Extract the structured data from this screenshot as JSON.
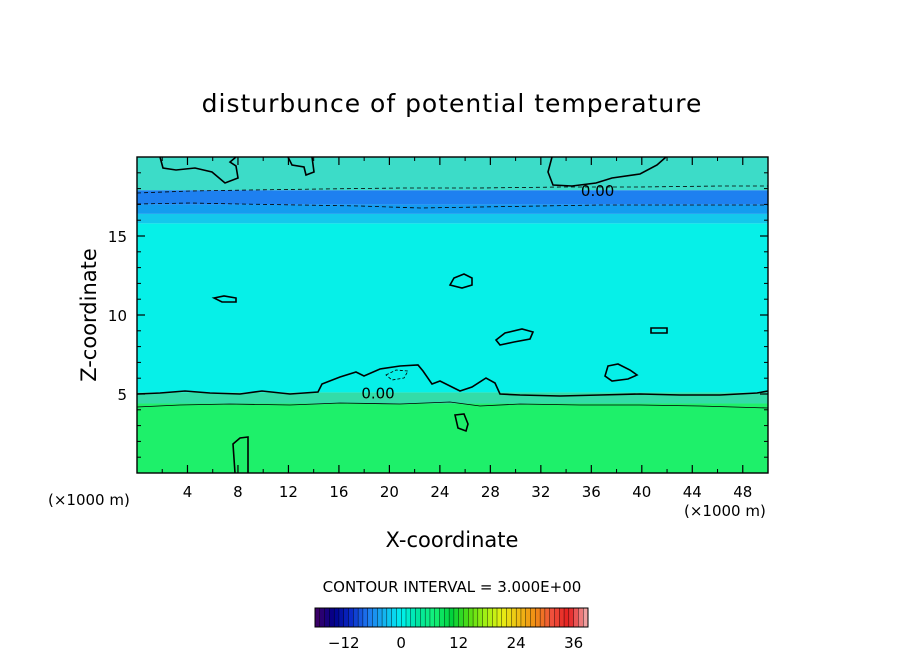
{
  "chart_data": {
    "type": "heatmap",
    "title": "disturbunce of potential temperature",
    "xlabel": "X-coordinate",
    "ylabel": "Z-coordinate",
    "x_unit_label": "(×1000 m)",
    "x_unit_label_right": "(×1000 m)",
    "xlim": [
      0,
      50
    ],
    "ylim": [
      0,
      20
    ],
    "x_ticks": [
      4,
      8,
      12,
      16,
      20,
      24,
      28,
      32,
      36,
      40,
      44,
      48
    ],
    "y_ticks": [
      5,
      10,
      15
    ],
    "contour_interval_text": "CONTOUR INTERVAL = 3.000E+00",
    "contour_labels": [
      {
        "text": "0.00",
        "x": 36.5,
        "z": 17.9
      },
      {
        "text": "0.00",
        "x": 19.1,
        "z": 5.1
      }
    ],
    "colorbar": {
      "range": [
        -18,
        39
      ],
      "ticks": [
        -12,
        0,
        12,
        24,
        36
      ],
      "colors": [
        "#3a0068",
        "#00008c",
        "#0a2cc8",
        "#1e78f0",
        "#14b4f0",
        "#00f0f0",
        "#00e6a0",
        "#14f078",
        "#00d23c",
        "#50dc14",
        "#a0f014",
        "#e6f014",
        "#f0be14",
        "#f08c14",
        "#f0503c",
        "#e61e1e",
        "#f0a0a0"
      ]
    },
    "field_bands": [
      {
        "z": [
          0,
          4.4
        ],
        "value": 6,
        "color": "#1ef06a"
      },
      {
        "z": [
          4.4,
          5.1
        ],
        "value": 3,
        "color": "#33dca8"
      },
      {
        "z": [
          5.1,
          15.8
        ],
        "value": 0.5,
        "color": "#06f0e8"
      },
      {
        "z": [
          15.8,
          16.4
        ],
        "value": -1.5,
        "color": "#14c8ec"
      },
      {
        "z": [
          16.4,
          17.0
        ],
        "value": -3,
        "color": "#149cf0"
      },
      {
        "z": [
          17.0,
          17.9
        ],
        "value": -4,
        "color": "#1e80f0"
      },
      {
        "z": [
          17.9,
          20
        ],
        "value": 1.5,
        "color": "#3cdcc8"
      }
    ]
  }
}
